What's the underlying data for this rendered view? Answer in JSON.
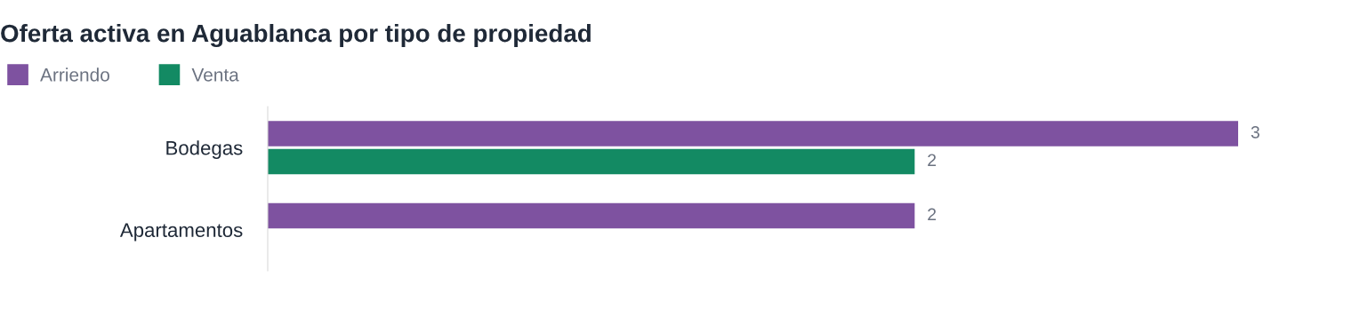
{
  "chart_data": {
    "type": "bar",
    "orientation": "horizontal",
    "title": "Oferta activa en Aguablanca por tipo de propiedad",
    "categories": [
      "Bodegas",
      "Apartamentos"
    ],
    "series": [
      {
        "name": "Arriendo",
        "color": "#7e52a0",
        "values": [
          3,
          2
        ]
      },
      {
        "name": "Venta",
        "color": "#138a63",
        "values": [
          2,
          null
        ]
      }
    ],
    "data_labels": true,
    "legend": "top left",
    "grid": false,
    "tick_labels": "y"
  }
}
